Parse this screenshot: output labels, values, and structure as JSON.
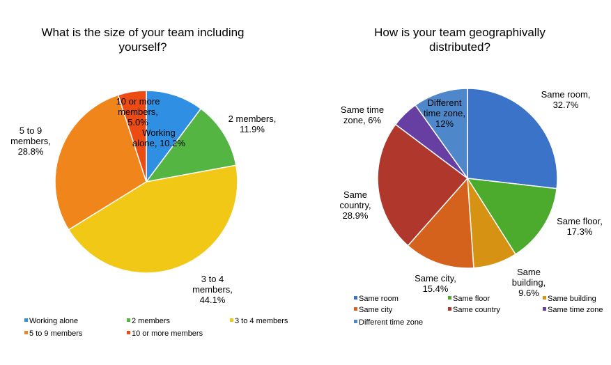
{
  "chart_data": [
    {
      "type": "pie",
      "title": "What is the size of your team including\nyourself?",
      "slices": [
        {
          "name": "Working alone",
          "value": 10.2,
          "label": [
            "Working",
            "alone, 10.2%"
          ],
          "color": "#2f8fe3"
        },
        {
          "name": "2 members",
          "value": 11.9,
          "label": [
            "2 members,",
            "11.9%"
          ],
          "color": "#55b542"
        },
        {
          "name": "3 to 4 members",
          "value": 44.1,
          "label": [
            "3 to 4",
            "members,",
            "44.1%"
          ],
          "color": "#f2c816"
        },
        {
          "name": "5 to 9 members",
          "value": 28.8,
          "label": [
            "5 to 9",
            "members,",
            "28.8%"
          ],
          "color": "#f0851c"
        },
        {
          "name": "10 or more members",
          "value": 5.0,
          "label": [
            "10 or more",
            "members,",
            "5.0%"
          ],
          "color": "#ec4b14"
        }
      ],
      "legend": [
        "Working alone",
        "2 members",
        "3 to 4 members",
        "5 to 9 members",
        "10 or more members"
      ],
      "legend_position": "bottom"
    },
    {
      "type": "pie",
      "title": "How is your team geographivally\ndistributed?",
      "slices": [
        {
          "name": "Same room",
          "value": 32.7,
          "label": [
            "Same room,",
            "32.7%"
          ],
          "color": "#3b73c8"
        },
        {
          "name": "Same floor",
          "value": 17.3,
          "label": [
            "Same floor,",
            "17.3%"
          ],
          "color": "#4caa2c"
        },
        {
          "name": "Same building",
          "value": 9.6,
          "label": [
            "Same",
            "building,",
            "9.6%"
          ],
          "color": "#d59213"
        },
        {
          "name": "Same city",
          "value": 15.4,
          "label": [
            "Same city,",
            "15.4%"
          ],
          "color": "#d5621c"
        },
        {
          "name": "Same country",
          "value": 28.9,
          "label": [
            "Same",
            "country,",
            "28.9%"
          ],
          "color": "#b0372c"
        },
        {
          "name": "Same time zone",
          "value": 6.0,
          "label": [
            "Same time",
            "zone, 6%"
          ],
          "color": "#673ea2"
        },
        {
          "name": "Different time zone",
          "value": 12.0,
          "label": [
            "Different",
            "time zone,",
            "12%"
          ],
          "color": "#4e87ca"
        }
      ],
      "legend": [
        "Same room",
        "Same floor",
        "Same building",
        "Same city",
        "Same country",
        "Same time zone",
        "Different time zone"
      ],
      "legend_position": "bottom"
    }
  ]
}
